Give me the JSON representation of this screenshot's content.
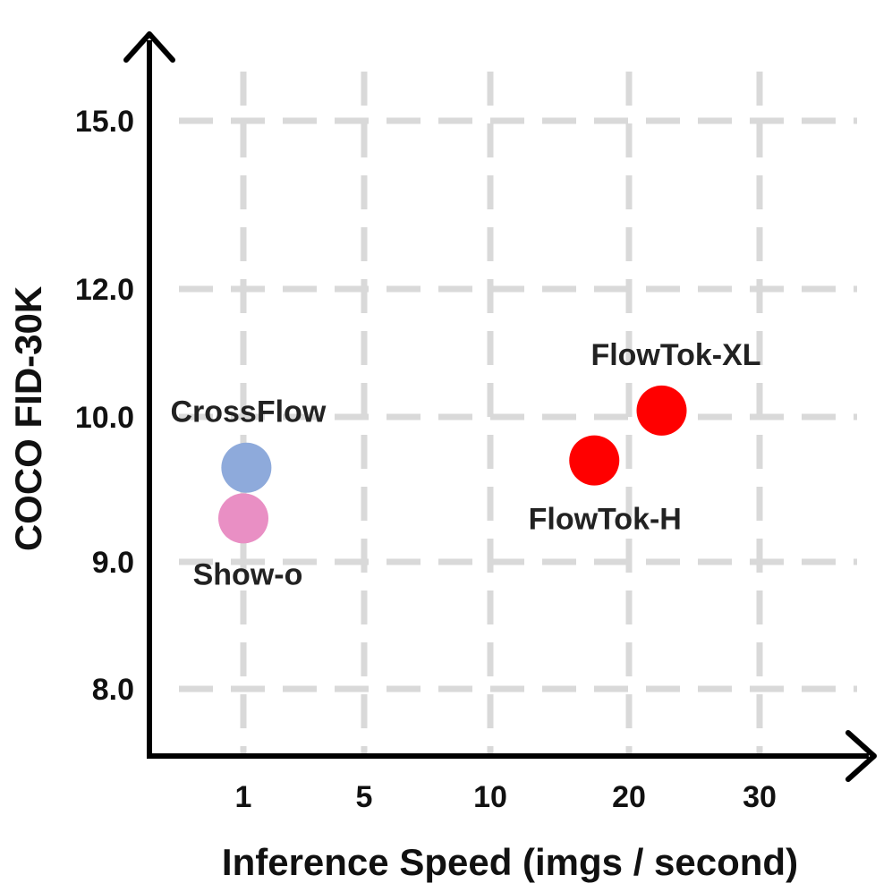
{
  "chart_data": {
    "type": "scatter",
    "title": "",
    "xlabel": "Inference Speed (imgs / second)",
    "ylabel": "COCO FID-30K",
    "x_ticks": [
      "1",
      "5",
      "10",
      "20",
      "30"
    ],
    "y_ticks": [
      "15.0",
      "12.0",
      "10.0",
      "9.0",
      "8.0"
    ],
    "grid": true,
    "points": [
      {
        "name": "CrossFlow",
        "x": 1.1,
        "y": 9.65,
        "color": "#8eaadb"
      },
      {
        "name": "Show-o",
        "x": 1.0,
        "y": 9.3,
        "color": "#e98fc4"
      },
      {
        "name": "FlowTok-H",
        "x": 17.5,
        "y": 9.7,
        "color": "#ff0000"
      },
      {
        "name": "FlowTok-XL",
        "x": 22.5,
        "y": 10.1,
        "color": "#ff0000"
      }
    ]
  }
}
